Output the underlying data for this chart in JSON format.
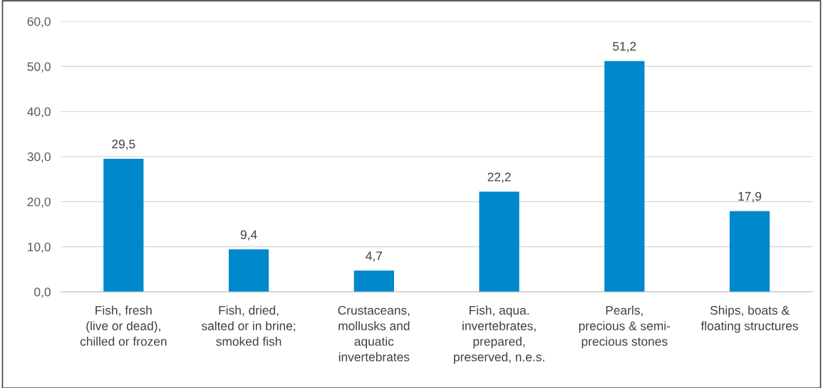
{
  "chart_data": {
    "type": "bar",
    "categories": [
      "Fish, fresh\n(live or dead),\nchilled or frozen",
      "Fish, dried,\nsalted or in brine;\nsmoked fish",
      "Crustaceans,\nmollusks and\naquatic\ninvertebrates",
      "Fish, aqua.\ninvertebrates,\nprepared,\npreserved, n.e.s.",
      "Pearls,\nprecious & semi-\nprecious stones",
      "Ships, boats &\nfloating structures"
    ],
    "values": [
      29.5,
      9.4,
      4.7,
      22.2,
      51.2,
      17.9
    ],
    "value_labels": [
      "29,5",
      "9,4",
      "4,7",
      "22,2",
      "51,2",
      "17,9"
    ],
    "color": "#0088cc",
    "ylim": [
      0,
      60
    ],
    "yticks": [
      {
        "value": 0,
        "label": "0,0"
      },
      {
        "value": 10,
        "label": "10,0"
      },
      {
        "value": 20,
        "label": "20,0"
      },
      {
        "value": 30,
        "label": "30,0"
      },
      {
        "value": 40,
        "label": "40,0"
      },
      {
        "value": 50,
        "label": "50,0"
      },
      {
        "value": 60,
        "label": "60,0"
      }
    ],
    "grid": "y"
  }
}
